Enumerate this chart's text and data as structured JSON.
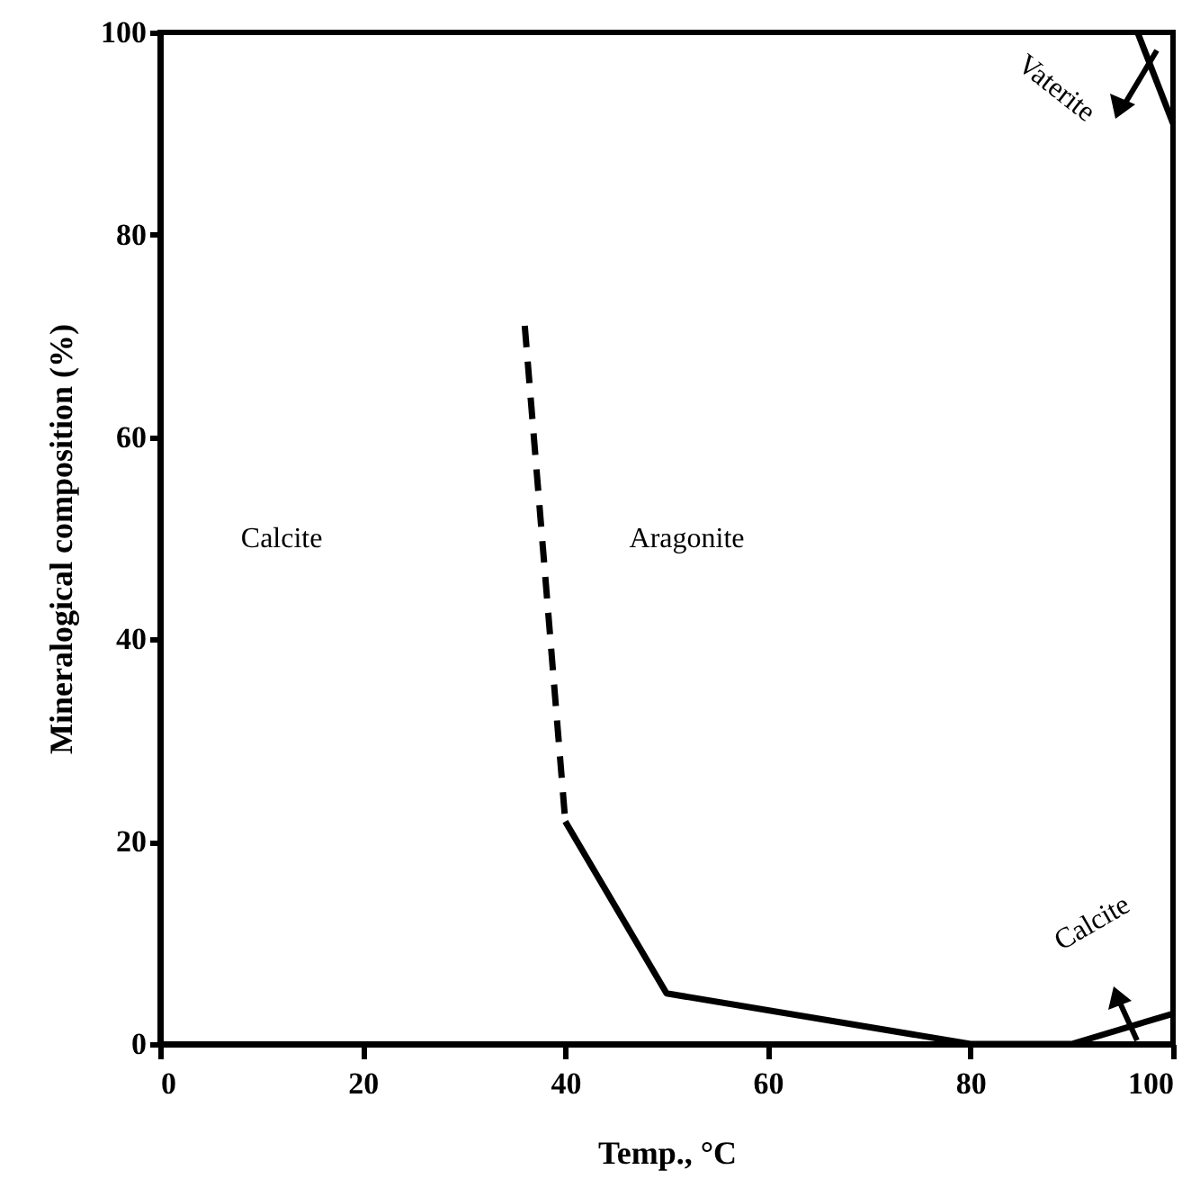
{
  "chart_data": {
    "type": "line",
    "xlabel": "Temp., °C",
    "ylabel": "Mineralogical composition (%)",
    "xlim": [
      0,
      100
    ],
    "ylim": [
      0,
      100
    ],
    "xticks": [
      0,
      20,
      40,
      60,
      80,
      100
    ],
    "yticks": [
      0,
      20,
      40,
      60,
      80,
      100
    ],
    "grid": false,
    "series": [
      {
        "color": "#000000",
        "line_style": "dashed",
        "x": [
          36,
          40
        ],
        "values": [
          71,
          22
        ]
      },
      {
        "color": "#000000",
        "line_style": "solid",
        "x": [
          40,
          50,
          80,
          90,
          100
        ],
        "values": [
          22,
          5,
          0,
          0,
          3
        ]
      },
      {
        "color": "#000000",
        "line_style": "solid",
        "x": [
          96.5,
          100
        ],
        "values": [
          100,
          91
        ]
      }
    ],
    "annotations": [
      "Calcite",
      "Aragonite",
      "Vaterite",
      "Calcite"
    ]
  }
}
